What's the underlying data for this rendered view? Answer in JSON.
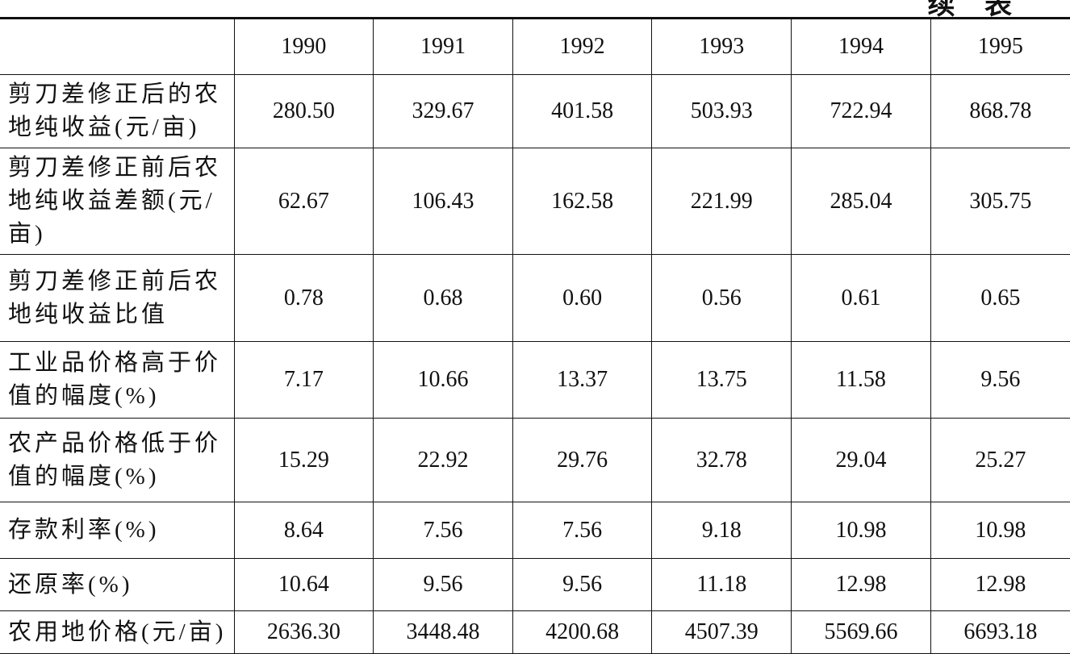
{
  "header": {
    "title": "续 表"
  },
  "table": {
    "columns": [
      "1990",
      "1991",
      "1992",
      "1993",
      "1994",
      "1995"
    ],
    "rows": [
      {
        "label": "剪刀差修正后的农地纯收益(元/亩)",
        "cells": [
          "280.50",
          "329.67",
          "401.58",
          "503.93",
          "722.94",
          "868.78"
        ]
      },
      {
        "label": "剪刀差修正前后农地纯收益差额(元/亩)",
        "cells": [
          "62.67",
          "106.43",
          "162.58",
          "221.99",
          "285.04",
          "305.75"
        ]
      },
      {
        "label": "剪刀差修正前后农地纯收益比值",
        "cells": [
          "0.78",
          "0.68",
          "0.60",
          "0.56",
          "0.61",
          "0.65"
        ]
      },
      {
        "label": "工业品价格高于价值的幅度(%)",
        "cells": [
          "7.17",
          "10.66",
          "13.37",
          "13.75",
          "11.58",
          "9.56"
        ]
      },
      {
        "label": "农产品价格低于价值的幅度(%)",
        "cells": [
          "15.29",
          "22.92",
          "29.76",
          "32.78",
          "29.04",
          "25.27"
        ]
      },
      {
        "label": "存款利率(%)",
        "cells": [
          "8.64",
          "7.56",
          "7.56",
          "9.18",
          "10.98",
          "10.98"
        ]
      },
      {
        "label": "还原率(%)",
        "cells": [
          "10.64",
          "9.56",
          "9.56",
          "11.18",
          "12.98",
          "12.98"
        ]
      },
      {
        "label": "农用地价格(元/亩)",
        "cells": [
          "2636.30",
          "3448.48",
          "4200.68",
          "4507.39",
          "5569.66",
          "6693.18"
        ]
      }
    ]
  }
}
